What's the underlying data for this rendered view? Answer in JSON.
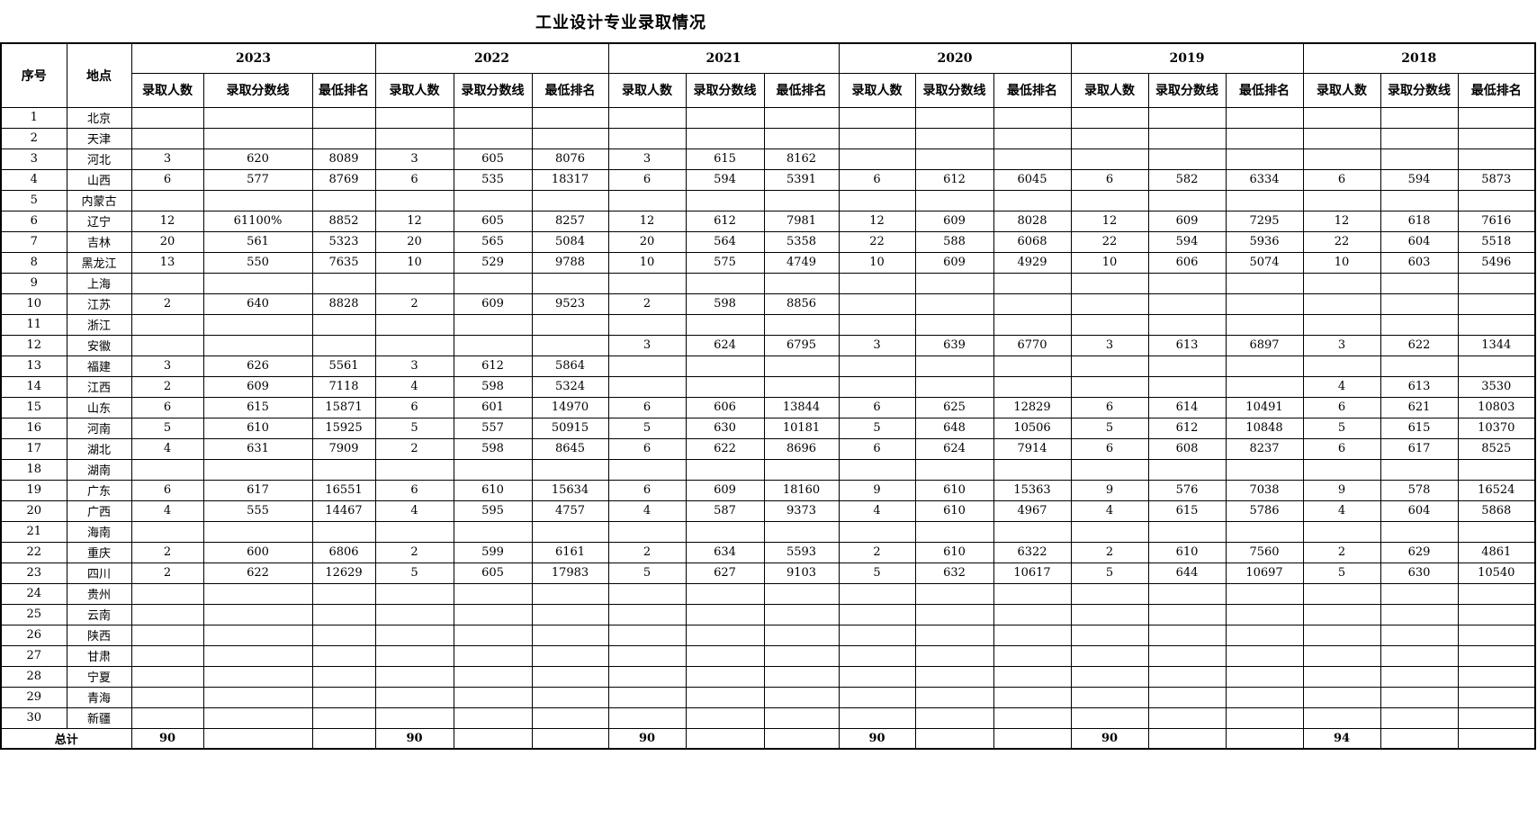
{
  "title": "工业设计专业录取情况",
  "columns": {
    "index": "序号",
    "location": "地点",
    "years": [
      "2023",
      "2022",
      "2021",
      "2020",
      "2019",
      "2018"
    ],
    "sub": [
      "录取人数",
      "录取分数线",
      "最低排名"
    ]
  },
  "rows": [
    {
      "no": "1",
      "loc": "北京",
      "cells": [
        "",
        "",
        "",
        "",
        "",
        "",
        "",
        "",
        "",
        "",
        "",
        "",
        "",
        "",
        "",
        "",
        "",
        ""
      ]
    },
    {
      "no": "2",
      "loc": "天津",
      "cells": [
        "",
        "",
        "",
        "",
        "",
        "",
        "",
        "",
        "",
        "",
        "",
        "",
        "",
        "",
        "",
        "",
        "",
        ""
      ]
    },
    {
      "no": "3",
      "loc": "河北",
      "cells": [
        "3",
        "620",
        "8089",
        "3",
        "605",
        "8076",
        "3",
        "615",
        "8162",
        "",
        "",
        "",
        "",
        "",
        "",
        "",
        "",
        ""
      ]
    },
    {
      "no": "4",
      "loc": "山西",
      "cells": [
        "6",
        "577",
        "8769",
        "6",
        "535",
        "18317",
        "6",
        "594",
        "5391",
        "6",
        "612",
        "6045",
        "6",
        "582",
        "6334",
        "6",
        "594",
        "5873"
      ]
    },
    {
      "no": "5",
      "loc": "内蒙古",
      "cells": [
        "",
        "",
        "",
        "",
        "",
        "",
        "",
        "",
        "",
        "",
        "",
        "",
        "",
        "",
        "",
        "",
        "",
        ""
      ]
    },
    {
      "no": "6",
      "loc": "辽宁",
      "cells": [
        "12",
        "61100%",
        "8852",
        "12",
        "605",
        "8257",
        "12",
        "612",
        "7981",
        "12",
        "609",
        "8028",
        "12",
        "609",
        "7295",
        "12",
        "618",
        "7616"
      ]
    },
    {
      "no": "7",
      "loc": "吉林",
      "cells": [
        "20",
        "561",
        "5323",
        "20",
        "565",
        "5084",
        "20",
        "564",
        "5358",
        "22",
        "588",
        "6068",
        "22",
        "594",
        "5936",
        "22",
        "604",
        "5518"
      ]
    },
    {
      "no": "8",
      "loc": "黑龙江",
      "cells": [
        "13",
        "550",
        "7635",
        "10",
        "529",
        "9788",
        "10",
        "575",
        "4749",
        "10",
        "609",
        "4929",
        "10",
        "606",
        "5074",
        "10",
        "603",
        "5496"
      ]
    },
    {
      "no": "9",
      "loc": "上海",
      "cells": [
        "",
        "",
        "",
        "",
        "",
        "",
        "",
        "",
        "",
        "",
        "",
        "",
        "",
        "",
        "",
        "",
        "",
        ""
      ]
    },
    {
      "no": "10",
      "loc": "江苏",
      "cells": [
        "2",
        "640",
        "8828",
        "2",
        "609",
        "9523",
        "2",
        "598",
        "8856",
        "",
        "",
        "",
        "",
        "",
        "",
        "",
        "",
        ""
      ]
    },
    {
      "no": "11",
      "loc": "浙江",
      "cells": [
        "",
        "",
        "",
        "",
        "",
        "",
        "",
        "",
        "",
        "",
        "",
        "",
        "",
        "",
        "",
        "",
        "",
        ""
      ]
    },
    {
      "no": "12",
      "loc": "安徽",
      "cells": [
        "",
        "",
        "",
        "",
        "",
        "",
        "3",
        "624",
        "6795",
        "3",
        "639",
        "6770",
        "3",
        "613",
        "6897",
        "3",
        "622",
        "1344"
      ]
    },
    {
      "no": "13",
      "loc": "福建",
      "cells": [
        "3",
        "626",
        "5561",
        "3",
        "612",
        "5864",
        "",
        "",
        "",
        "",
        "",
        "",
        "",
        "",
        "",
        "",
        "",
        ""
      ]
    },
    {
      "no": "14",
      "loc": "江西",
      "cells": [
        "2",
        "609",
        "7118",
        "4",
        "598",
        "5324",
        "",
        "",
        "",
        "",
        "",
        "",
        "",
        "",
        "",
        "4",
        "613",
        "3530"
      ]
    },
    {
      "no": "15",
      "loc": "山东",
      "cells": [
        "6",
        "615",
        "15871",
        "6",
        "601",
        "14970",
        "6",
        "606",
        "13844",
        "6",
        "625",
        "12829",
        "6",
        "614",
        "10491",
        "6",
        "621",
        "10803"
      ]
    },
    {
      "no": "16",
      "loc": "河南",
      "cells": [
        "5",
        "610",
        "15925",
        "5",
        "557",
        "50915",
        "5",
        "630",
        "10181",
        "5",
        "648",
        "10506",
        "5",
        "612",
        "10848",
        "5",
        "615",
        "10370"
      ]
    },
    {
      "no": "17",
      "loc": "湖北",
      "cells": [
        "4",
        "631",
        "7909",
        "2",
        "598",
        "8645",
        "6",
        "622",
        "8696",
        "6",
        "624",
        "7914",
        "6",
        "608",
        "8237",
        "6",
        "617",
        "8525"
      ]
    },
    {
      "no": "18",
      "loc": "湖南",
      "cells": [
        "",
        "",
        "",
        "",
        "",
        "",
        "",
        "",
        "",
        "",
        "",
        "",
        "",
        "",
        "",
        "",
        "",
        ""
      ]
    },
    {
      "no": "19",
      "loc": "广东",
      "cells": [
        "6",
        "617",
        "16551",
        "6",
        "610",
        "15634",
        "6",
        "609",
        "18160",
        "9",
        "610",
        "15363",
        "9",
        "576",
        "7038",
        "9",
        "578",
        "16524"
      ]
    },
    {
      "no": "20",
      "loc": "广西",
      "cells": [
        "4",
        "555",
        "14467",
        "4",
        "595",
        "4757",
        "4",
        "587",
        "9373",
        "4",
        "610",
        "4967",
        "4",
        "615",
        "5786",
        "4",
        "604",
        "5868"
      ]
    },
    {
      "no": "21",
      "loc": "海南",
      "cells": [
        "",
        "",
        "",
        "",
        "",
        "",
        "",
        "",
        "",
        "",
        "",
        "",
        "",
        "",
        "",
        "",
        "",
        ""
      ]
    },
    {
      "no": "22",
      "loc": "重庆",
      "cells": [
        "2",
        "600",
        "6806",
        "2",
        "599",
        "6161",
        "2",
        "634",
        "5593",
        "2",
        "610",
        "6322",
        "2",
        "610",
        "7560",
        "2",
        "629",
        "4861"
      ]
    },
    {
      "no": "23",
      "loc": "四川",
      "cells": [
        "2",
        "622",
        "12629",
        "5",
        "605",
        "17983",
        "5",
        "627",
        "9103",
        "5",
        "632",
        "10617",
        "5",
        "644",
        "10697",
        "5",
        "630",
        "10540"
      ]
    },
    {
      "no": "24",
      "loc": "贵州",
      "cells": [
        "",
        "",
        "",
        "",
        "",
        "",
        "",
        "",
        "",
        "",
        "",
        "",
        "",
        "",
        "",
        "",
        "",
        ""
      ]
    },
    {
      "no": "25",
      "loc": "云南",
      "cells": [
        "",
        "",
        "",
        "",
        "",
        "",
        "",
        "",
        "",
        "",
        "",
        "",
        "",
        "",
        "",
        "",
        "",
        ""
      ]
    },
    {
      "no": "26",
      "loc": "陕西",
      "cells": [
        "",
        "",
        "",
        "",
        "",
        "",
        "",
        "",
        "",
        "",
        "",
        "",
        "",
        "",
        "",
        "",
        "",
        ""
      ]
    },
    {
      "no": "27",
      "loc": "甘肃",
      "cells": [
        "",
        "",
        "",
        "",
        "",
        "",
        "",
        "",
        "",
        "",
        "",
        "",
        "",
        "",
        "",
        "",
        "",
        ""
      ]
    },
    {
      "no": "28",
      "loc": "宁夏",
      "cells": [
        "",
        "",
        "",
        "",
        "",
        "",
        "",
        "",
        "",
        "",
        "",
        "",
        "",
        "",
        "",
        "",
        "",
        ""
      ]
    },
    {
      "no": "29",
      "loc": "青海",
      "cells": [
        "",
        "",
        "",
        "",
        "",
        "",
        "",
        "",
        "",
        "",
        "",
        "",
        "",
        "",
        "",
        "",
        "",
        ""
      ]
    },
    {
      "no": "30",
      "loc": "新疆",
      "cells": [
        "",
        "",
        "",
        "",
        "",
        "",
        "",
        "",
        "",
        "",
        "",
        "",
        "",
        "",
        "",
        "",
        "",
        ""
      ]
    }
  ],
  "total": {
    "label": "总计",
    "values": [
      "90",
      "",
      "",
      "90",
      "",
      "",
      "90",
      "",
      "",
      "90",
      "",
      "",
      "90",
      "",
      "",
      "94",
      "",
      ""
    ]
  }
}
